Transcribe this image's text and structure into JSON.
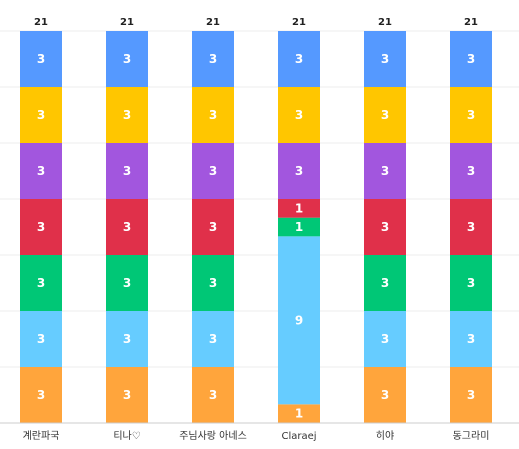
{
  "chart_data": {
    "type": "bar",
    "stacked": true,
    "title": "",
    "xlabel": "",
    "ylabel": "",
    "categories": [
      "계란파국",
      "티나♡",
      "주님사랑 아네스",
      "Claraej",
      "히야",
      "동그라미"
    ],
    "totals": [
      21,
      21,
      21,
      21,
      21,
      21
    ],
    "ylim": [
      0,
      21
    ],
    "grid": true,
    "series": [
      {
        "color": "#FFA53C",
        "values": [
          3,
          3,
          3,
          1,
          3,
          3
        ]
      },
      {
        "color": "#66CCFF",
        "values": [
          3,
          3,
          3,
          9,
          3,
          3
        ]
      },
      {
        "color": "#00C776",
        "values": [
          3,
          3,
          3,
          1,
          3,
          3
        ]
      },
      {
        "color": "#E0304A",
        "values": [
          3,
          3,
          3,
          1,
          3,
          3
        ]
      },
      {
        "color": "#A256DE",
        "values": [
          3,
          3,
          3,
          3,
          3,
          3
        ]
      },
      {
        "color": "#FFC600",
        "values": [
          3,
          3,
          3,
          3,
          3,
          3
        ]
      },
      {
        "color": "#5599FF",
        "values": [
          3,
          3,
          3,
          3,
          3,
          3
        ]
      }
    ]
  }
}
